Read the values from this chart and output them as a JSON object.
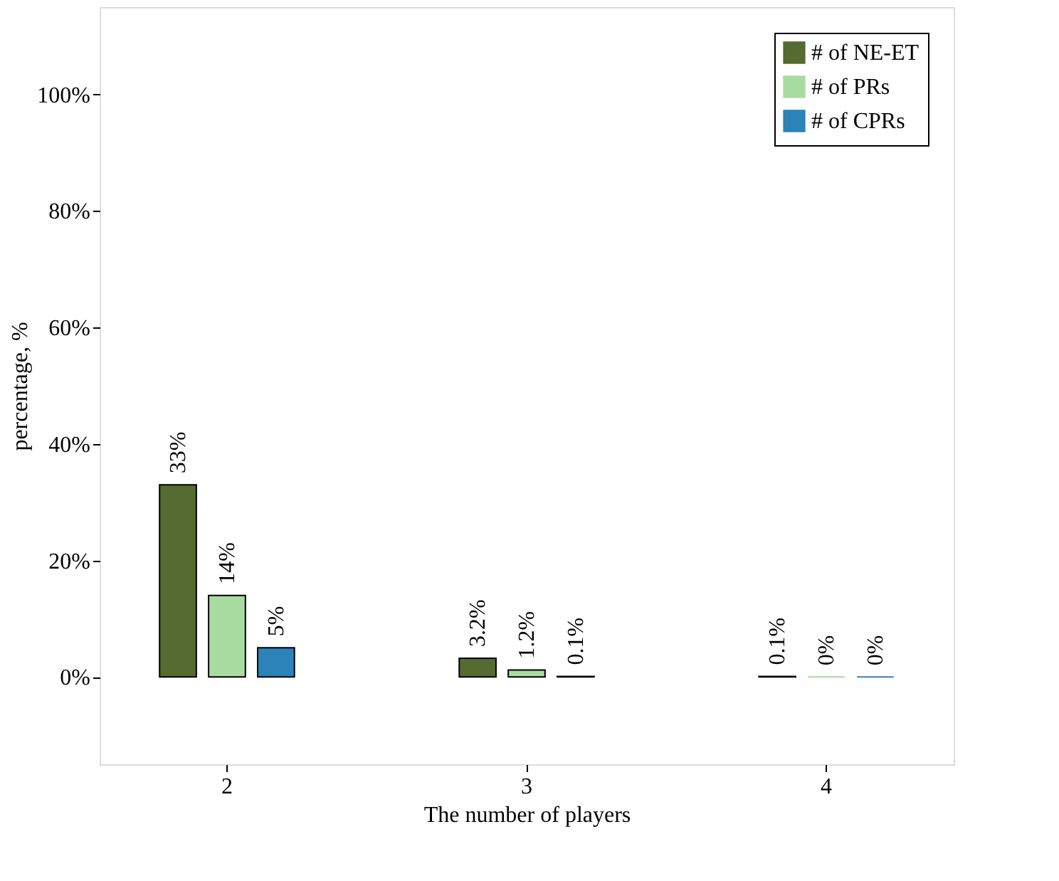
{
  "chart_data": {
    "type": "bar",
    "xlabel": "The number of players",
    "ylabel": "percentage, %",
    "categories": [
      "2",
      "3",
      "4"
    ],
    "series": [
      {
        "name": "# of NE-ET",
        "color": "#556b2f",
        "values": [
          33,
          3.2,
          0.1
        ],
        "value_labels": [
          "33%",
          "3.2%",
          "0.1%"
        ]
      },
      {
        "name": "# of PRs",
        "color": "#a8dba0",
        "values": [
          14,
          1.2,
          0
        ],
        "value_labels": [
          "14%",
          "1.2%",
          "0%"
        ]
      },
      {
        "name": "# of CPRs",
        "color": "#2b83ba",
        "values": [
          5,
          0.1,
          0
        ],
        "value_labels": [
          "5%",
          "0.1%",
          "0%"
        ]
      }
    ],
    "ylim": [
      -15,
      115
    ],
    "yticks": [
      {
        "value": 0,
        "label": "0%"
      },
      {
        "value": 20,
        "label": "20%"
      },
      {
        "value": 40,
        "label": "40%"
      },
      {
        "value": 60,
        "label": "60%"
      },
      {
        "value": 80,
        "label": "80%"
      },
      {
        "value": 100,
        "label": "100%"
      }
    ],
    "grid": false,
    "legend": "top right"
  }
}
